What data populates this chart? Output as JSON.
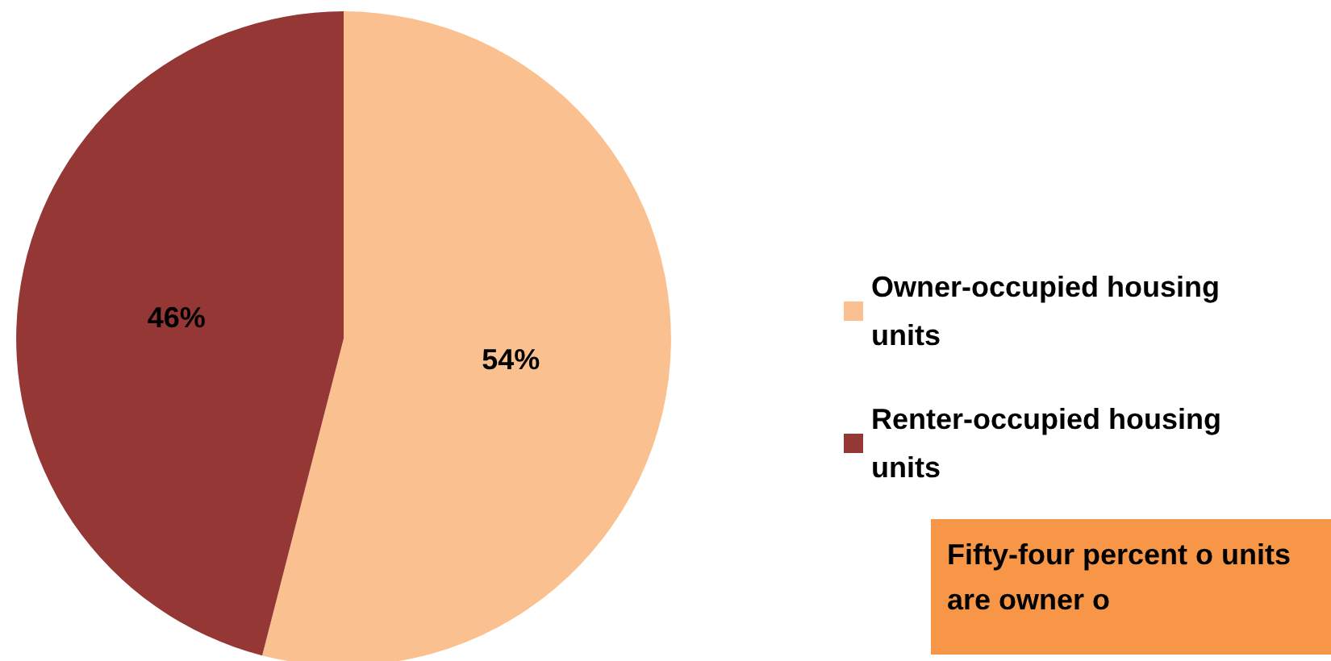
{
  "chart_data": {
    "type": "pie",
    "categories": [
      "Owner-occupied housing units",
      "Renter-occupied housing units"
    ],
    "values": [
      54,
      46
    ],
    "colors": [
      "#fac090",
      "#953735"
    ],
    "value_labels": [
      "54%",
      "46%"
    ],
    "legend": "right",
    "annotations": [
      "Fifty-four percent o units are owner o"
    ]
  }
}
